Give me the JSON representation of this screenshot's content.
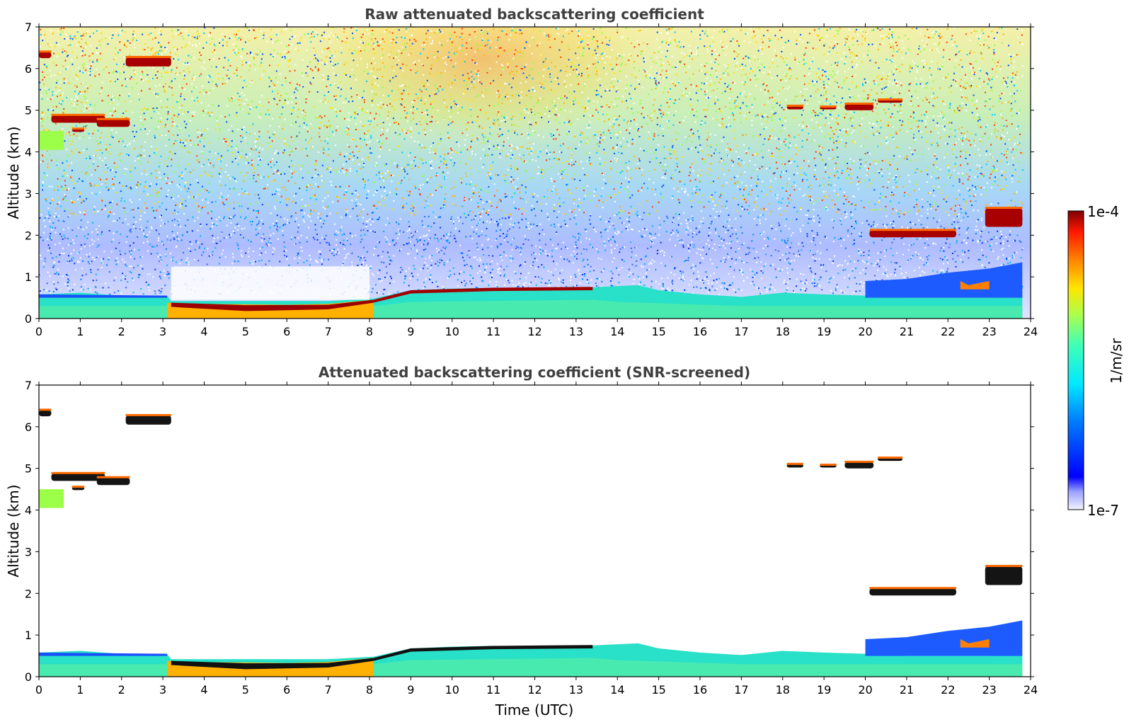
{
  "chart_data": [
    {
      "type": "heatmap",
      "title": "Raw attenuated backscattering coefficient",
      "xlabel": "",
      "ylabel": "Altitude (km)",
      "xlim": [
        0,
        24
      ],
      "ylim": [
        0,
        7
      ],
      "xticks": [
        0,
        1,
        2,
        3,
        4,
        5,
        6,
        7,
        8,
        9,
        10,
        11,
        12,
        13,
        14,
        15,
        16,
        17,
        18,
        19,
        20,
        21,
        22,
        23,
        24
      ],
      "yticks": [
        0,
        1,
        2,
        3,
        4,
        5,
        6,
        7
      ],
      "features": [
        {
          "kind": "boundary-layer",
          "x": [
            0,
            3.1
          ],
          "y": [
            0,
            0.55
          ]
        },
        {
          "kind": "cloud",
          "x": [
            3.1,
            8.1
          ],
          "y": [
            0.15,
            0.45
          ]
        },
        {
          "kind": "cloud-top",
          "x": [
            8.1,
            13.4
          ],
          "y": [
            0.55,
            0.75
          ]
        },
        {
          "kind": "boundary-layer",
          "x": [
            8.1,
            23.8
          ],
          "y": [
            0,
            0.75
          ]
        },
        {
          "kind": "cloud",
          "x": [
            0,
            0.3
          ],
          "y": [
            6.25,
            6.4
          ]
        },
        {
          "kind": "cloud",
          "x": [
            2.1,
            3.2
          ],
          "y": [
            6.05,
            6.25
          ]
        },
        {
          "kind": "cloud",
          "x": [
            0.3,
            2.2
          ],
          "y": [
            4.6,
            4.9
          ]
        },
        {
          "kind": "cloud",
          "x": [
            18.1,
            20.9
          ],
          "y": [
            4.98,
            5.25
          ]
        },
        {
          "kind": "cloud",
          "x": [
            20.1,
            22.2
          ],
          "y": [
            1.95,
            2.15
          ]
        },
        {
          "kind": "cloud",
          "x": [
            22.9,
            23.8
          ],
          "y": [
            2.2,
            2.7
          ]
        }
      ]
    },
    {
      "type": "heatmap",
      "title": "Attenuated backscattering coefficient (SNR-screened)",
      "xlabel": "Time (UTC)",
      "ylabel": "Altitude (km)",
      "xlim": [
        0,
        24
      ],
      "ylim": [
        0,
        7
      ],
      "xticks": [
        0,
        1,
        2,
        3,
        4,
        5,
        6,
        7,
        8,
        9,
        10,
        11,
        12,
        13,
        14,
        15,
        16,
        17,
        18,
        19,
        20,
        21,
        22,
        23,
        24
      ],
      "yticks": [
        0,
        1,
        2,
        3,
        4,
        5,
        6,
        7
      ]
    }
  ],
  "colorbar": {
    "label": "1/m/sr",
    "max_label": "1e-4",
    "min_label": "1e-7",
    "scale": "log",
    "range": [
      1e-07,
      0.0001
    ],
    "colormap": "jet"
  }
}
